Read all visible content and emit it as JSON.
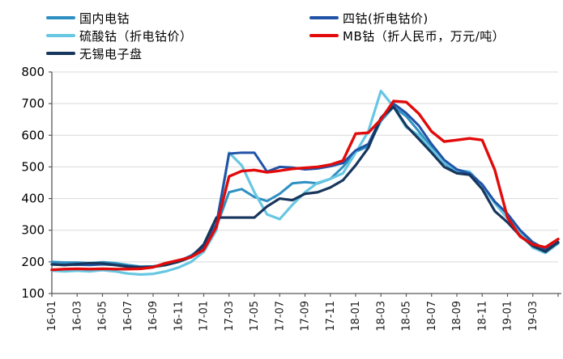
{
  "chart_data": {
    "type": "line",
    "title": "",
    "xlabel": "",
    "ylabel": "",
    "grid": "horizontal",
    "legend_position": "top",
    "style": {
      "background": "#FFFFFF",
      "grid_color": "#D9D9D9",
      "axis_color": "#595959",
      "tick_label_color": "#1A1A1A"
    },
    "y_axis": {
      "min": 100,
      "max": 800,
      "step": 100,
      "ticks": [
        100,
        200,
        300,
        400,
        500,
        600,
        700,
        800
      ]
    },
    "x_axis": {
      "tick_every": 2,
      "tick_labels": [
        "16-01",
        "16-03",
        "16-05",
        "16-07",
        "16-09",
        "16-11",
        "17-01",
        "17-03",
        "17-05",
        "17-07",
        "17-09",
        "17-11",
        "18-01",
        "18-03",
        "18-05",
        "18-07",
        "18-09",
        "18-11",
        "19-01",
        "19-03"
      ]
    },
    "timeline": [
      "16-01",
      "16-02",
      "16-03",
      "16-04",
      "16-05",
      "16-06",
      "16-07",
      "16-08",
      "16-09",
      "16-10",
      "16-11",
      "16-12",
      "17-01",
      "17-02",
      "17-03",
      "17-04",
      "17-05",
      "17-06",
      "17-07",
      "17-08",
      "17-09",
      "17-10",
      "17-11",
      "17-12",
      "18-01",
      "18-02",
      "18-03",
      "18-04",
      "18-05",
      "18-06",
      "18-07",
      "18-08",
      "18-09",
      "18-10",
      "18-11",
      "18-12",
      "19-01",
      "19-02",
      "19-03",
      "19-04",
      "19-05"
    ],
    "series": [
      {
        "name": "国内电钴",
        "color": "#2E90C2",
        "line_width": 3,
        "values": [
          200,
          198,
          198,
          196,
          199,
          196,
          190,
          185,
          186,
          192,
          202,
          220,
          250,
          310,
          420,
          430,
          405,
          392,
          415,
          448,
          452,
          448,
          462,
          500,
          548,
          565,
          645,
          690,
          660,
          612,
          560,
          512,
          482,
          478,
          440,
          385,
          338,
          295,
          258,
          238,
          263
        ]
      },
      {
        "name": "四钴(折电钴价)",
        "color": "#2053A6",
        "line_width": 3,
        "values": [
          192,
          190,
          191,
          190,
          192,
          190,
          186,
          183,
          185,
          191,
          202,
          218,
          245,
          320,
          542,
          545,
          545,
          485,
          500,
          498,
          492,
          495,
          502,
          512,
          552,
          572,
          655,
          700,
          670,
          630,
          572,
          522,
          492,
          480,
          445,
          390,
          352,
          300,
          262,
          240,
          260
        ]
      },
      {
        "name": "硫酸钴（折电钴价）",
        "color": "#67C7E2",
        "line_width": 3.2,
        "values": [
          172,
          170,
          172,
          170,
          174,
          170,
          163,
          160,
          162,
          170,
          182,
          200,
          232,
          300,
          545,
          505,
          420,
          350,
          335,
          380,
          420,
          450,
          462,
          480,
          545,
          612,
          740,
          690,
          625,
          600,
          555,
          515,
          490,
          485,
          442,
          385,
          340,
          290,
          245,
          228,
          258
        ]
      },
      {
        "name": "MB钴（折人民币，万元/吨）",
        "color": "#E20A0A",
        "line_width": 3.4,
        "values": [
          175,
          177,
          178,
          177,
          178,
          177,
          177,
          178,
          183,
          196,
          205,
          215,
          238,
          310,
          470,
          487,
          490,
          483,
          488,
          494,
          497,
          500,
          507,
          520,
          605,
          608,
          650,
          708,
          705,
          668,
          612,
          580,
          585,
          590,
          585,
          490,
          340,
          280,
          255,
          246,
          272
        ]
      },
      {
        "name": "无锡电子盘",
        "color": "#17365D",
        "line_width": 3.2,
        "values": [
          192,
          190,
          193,
          196,
          195,
          190,
          185,
          183,
          184,
          190,
          200,
          215,
          255,
          340,
          340,
          340,
          340,
          375,
          400,
          395,
          415,
          420,
          435,
          458,
          505,
          560,
          655,
          690,
          630,
          588,
          545,
          500,
          480,
          475,
          430,
          360,
          325,
          282,
          250,
          232,
          262
        ]
      }
    ],
    "draw_order": [
      0,
      2,
      1,
      4,
      3
    ],
    "legend_layout": {
      "left_column_series": [
        0,
        2,
        4
      ],
      "right_column_series": [
        1,
        3
      ]
    }
  }
}
